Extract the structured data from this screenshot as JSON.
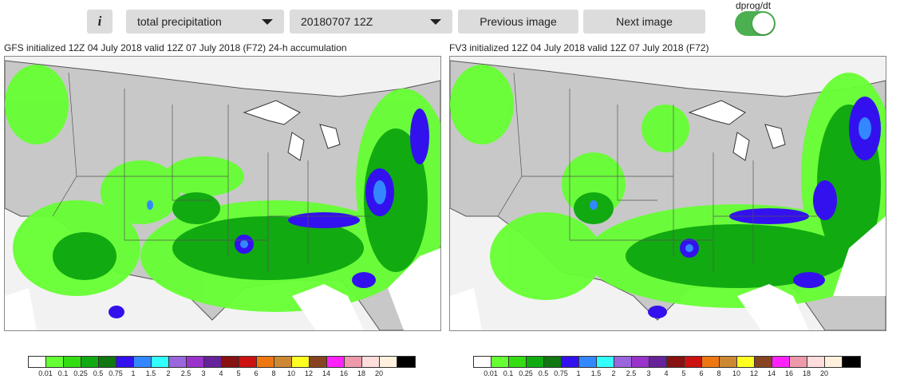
{
  "toolbar": {
    "info_label": "i",
    "variable": "total precipitation",
    "date": "20180707 12Z",
    "prev_label": "Previous image",
    "next_label": "Next image",
    "toggle_label": "dprog/dt",
    "toggle_on": true
  },
  "panels": [
    {
      "title": "GFS initialized 12Z 04 July 2018 valid 12Z 07 July 2018 (F72) 24-h accumulation"
    },
    {
      "title": "FV3 initialized 12Z 04 July 2018 valid 12Z 07 July 2018 (F72)"
    }
  ],
  "colorbar": {
    "colors": [
      "#ffffff",
      "#66ff33",
      "#33dd11",
      "#11aa11",
      "#117711",
      "#3311ee",
      "#3388ff",
      "#33ffff",
      "#9966dd",
      "#9933cc",
      "#662299",
      "#881111",
      "#cc1111",
      "#ee7711",
      "#cc8833",
      "#ffff22",
      "#884422",
      "#ff22ff",
      "#ee99aa",
      "#ffdddd",
      "#fff1dd",
      "#000000"
    ],
    "labels": [
      "0.01",
      "0.1",
      "0.25",
      "0.5",
      "0.75",
      "1",
      "1.5",
      "2",
      "2.5",
      "3",
      "4",
      "5",
      "6",
      "8",
      "10",
      "12",
      "14",
      "16",
      "18",
      "20"
    ]
  },
  "icons": {
    "info": "info-icon",
    "dropdown": "chevron-down-icon"
  }
}
